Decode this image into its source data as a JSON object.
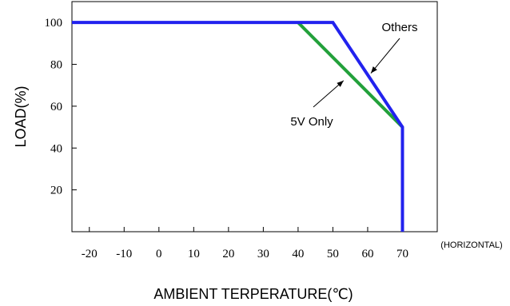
{
  "chart_data": {
    "type": "line",
    "title": "",
    "xlabel": "AMBIENT TERPERATURE(℃)",
    "xlabel_note": "(HORIZONTAL)",
    "ylabel": "LOAD(%)",
    "xlim": [
      -25,
      80
    ],
    "ylim": [
      0,
      110
    ],
    "x_ticks": [
      -20,
      -10,
      0,
      10,
      20,
      30,
      40,
      50,
      60,
      70
    ],
    "y_ticks": [
      20,
      40,
      60,
      80,
      100
    ],
    "grid": false,
    "series": [
      {
        "name": "Others",
        "color": "#2222ee",
        "points": [
          [
            -25,
            100
          ],
          [
            50,
            100
          ],
          [
            70,
            50
          ],
          [
            70,
            0
          ]
        ]
      },
      {
        "name": "5V Only",
        "color": "#22a03a",
        "points": [
          [
            40,
            100
          ],
          [
            70,
            50
          ]
        ]
      }
    ],
    "annotations": [
      {
        "text": "Others",
        "target": [
          60,
          75
        ],
        "label_pos": "upper-right"
      },
      {
        "text": "5V Only",
        "target": [
          54,
          73
        ],
        "label_pos": "lower-left"
      }
    ]
  }
}
